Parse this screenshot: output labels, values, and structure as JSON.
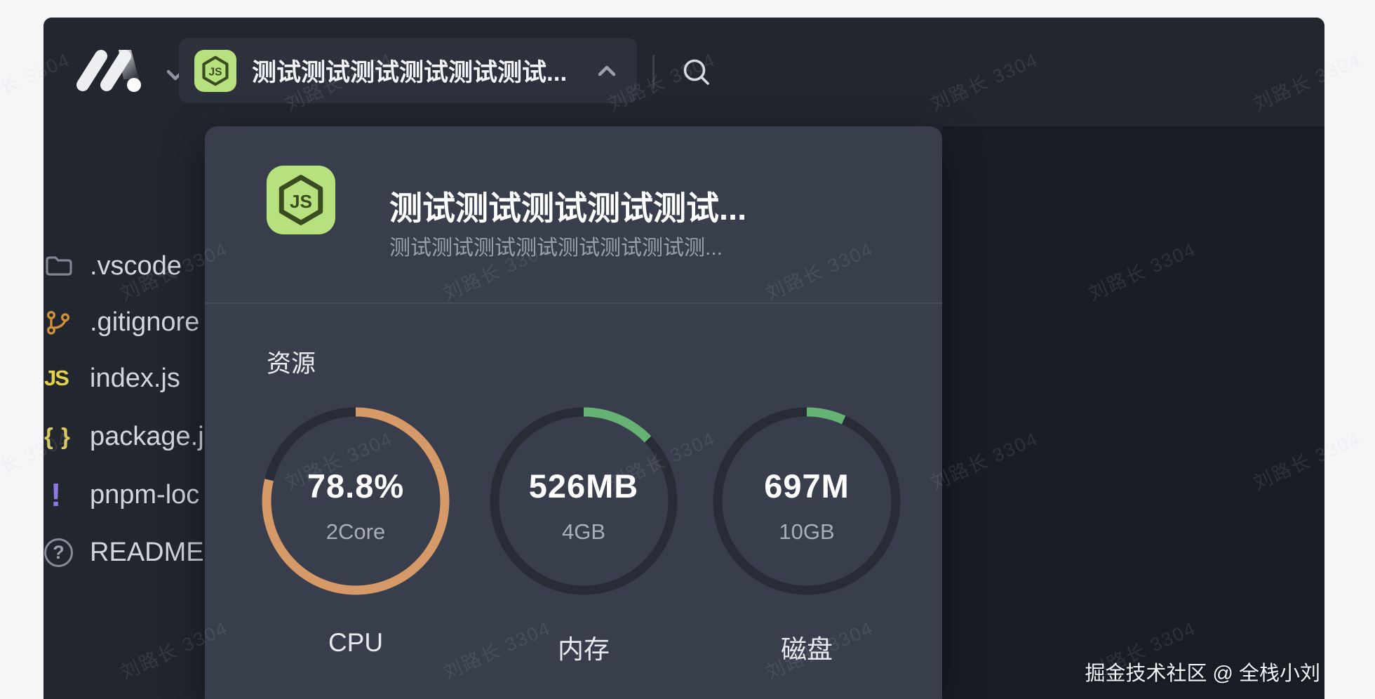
{
  "page": {
    "watermark_tile": "刘路长 3304",
    "credit": "掘金技术社区 @ 全栈小刘"
  },
  "topbar": {
    "project_selector_label": "测试测试测试测试测试测试...",
    "project_icon": "nodejs-hexagon-icon",
    "logo_icon": "marscode-m-logo",
    "search_icon": "magnifier"
  },
  "sidebar": {
    "files": [
      {
        "name": ".vscode",
        "icon": "folder-icon",
        "glyph": ""
      },
      {
        "name": ".gitignore",
        "icon": "git-branch-icon",
        "glyph": ""
      },
      {
        "name": "index.js",
        "icon": "js-icon",
        "glyph": "JS"
      },
      {
        "name": "package.j",
        "icon": "braces-icon",
        "glyph": "{ }"
      },
      {
        "name": "pnpm-loc",
        "icon": "exclamation-icon",
        "glyph": "!"
      },
      {
        "name": "README.",
        "icon": "question-icon",
        "glyph": "?"
      }
    ]
  },
  "popup": {
    "title": "测试测试测试测试测试...",
    "subtitle": "测试测试测试测试测试测试测试测...",
    "section_label": "资源",
    "gauges": [
      {
        "id": "cpu",
        "value": "78.8%",
        "capacity": "2Core",
        "label": "CPU",
        "percent": 78.8,
        "color": "#d59a68"
      },
      {
        "id": "memory",
        "value": "526MB",
        "capacity": "4GB",
        "label": "内存",
        "percent": 12.8,
        "color": "#65b274"
      },
      {
        "id": "disk",
        "value": "697M",
        "capacity": "10GB",
        "label": "磁盘",
        "percent": 6.8,
        "color": "#65b274"
      }
    ],
    "gauge_track_color": "#282c36"
  },
  "colors": {
    "page_bg": "#f5f6f8",
    "app_bg": "#22262e",
    "editor_bg": "#1a1d26",
    "popup_bg": "#3a3f4c",
    "accent_green_icon": "#b7e07e",
    "arc_orange": "#d59a68",
    "arc_green": "#65b274"
  }
}
